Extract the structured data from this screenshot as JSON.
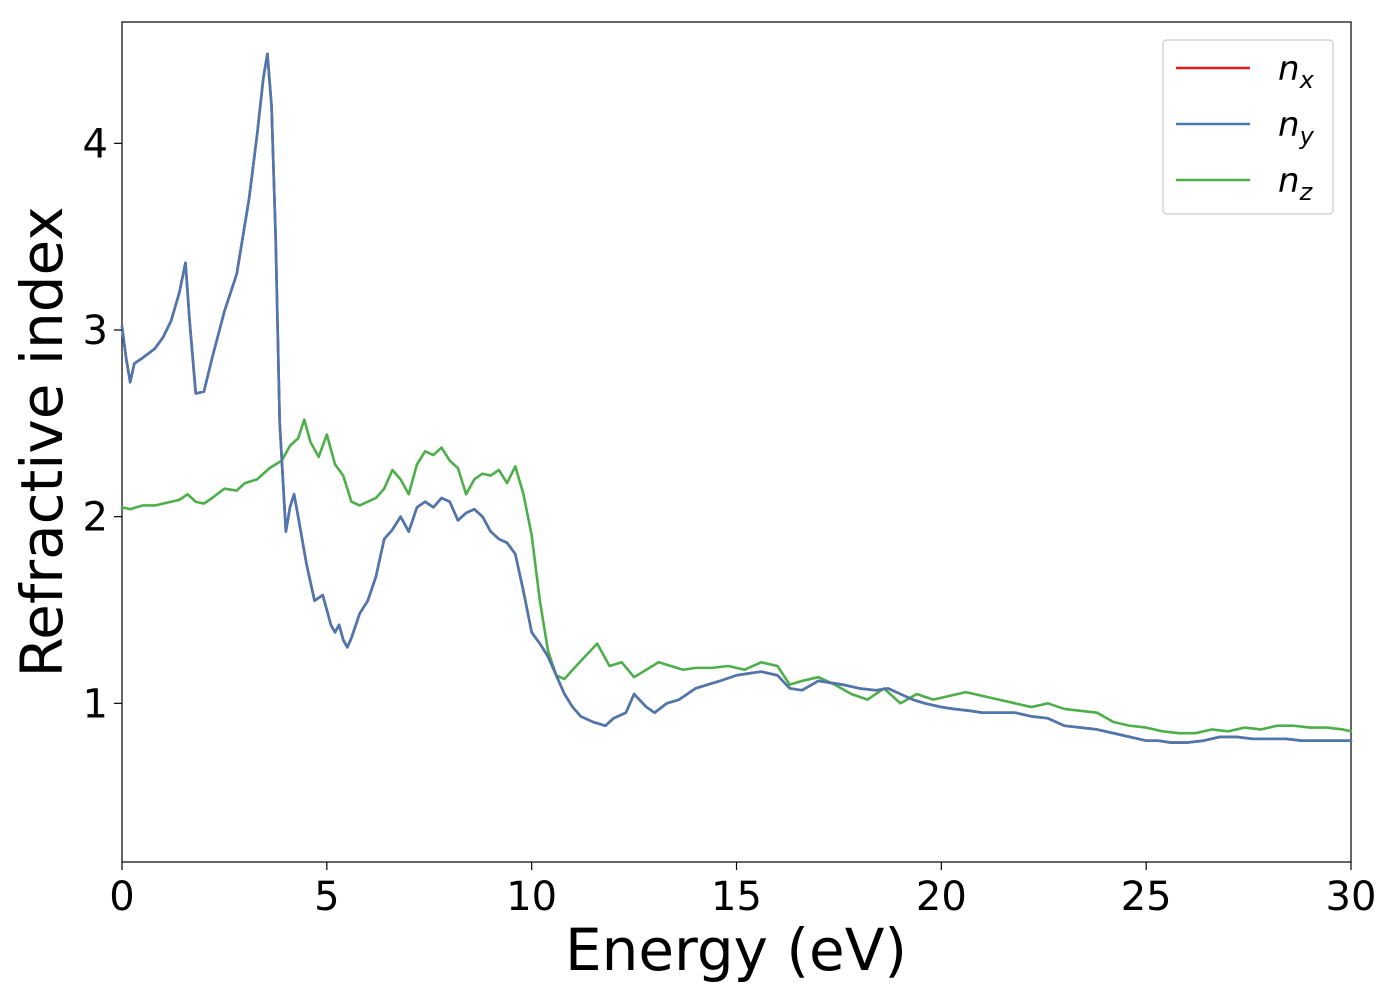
{
  "chart_data": {
    "type": "line",
    "xlabel": "Energy (eV)",
    "ylabel": "Refractive index",
    "xlim": [
      0,
      30
    ],
    "ylim": [
      0.15,
      4.65
    ],
    "xticks": [
      0,
      5,
      10,
      15,
      20,
      25,
      30
    ],
    "yticks": [
      1,
      2,
      3,
      4
    ],
    "grid": false,
    "legend_position": "top-right",
    "series": [
      {
        "name": "n",
        "subscript": "x",
        "color": "#e41a1c",
        "x": [
          0,
          0.1,
          0.2,
          0.3,
          0.5,
          0.8,
          1.0,
          1.2,
          1.4,
          1.55,
          1.65,
          1.8,
          2.0,
          2.2,
          2.5,
          2.8,
          3.1,
          3.3,
          3.45,
          3.55,
          3.65,
          3.75,
          3.85,
          4.0,
          4.1,
          4.2,
          4.3,
          4.5,
          4.7,
          4.9,
          5.0,
          5.1,
          5.2,
          5.3,
          5.4,
          5.5,
          5.6,
          5.8,
          6.0,
          6.2,
          6.4,
          6.6,
          6.8,
          7.0,
          7.2,
          7.4,
          7.6,
          7.8,
          8.0,
          8.2,
          8.4,
          8.6,
          8.8,
          9.0,
          9.2,
          9.4,
          9.6,
          9.8,
          10.0,
          10.2,
          10.4,
          10.6,
          10.8,
          11.0,
          11.2,
          11.5,
          11.8,
          12.0,
          12.3,
          12.5,
          12.8,
          13.0,
          13.3,
          13.6,
          14.0,
          14.3,
          14.6,
          15.0,
          15.3,
          15.6,
          16.0,
          16.3,
          16.6,
          17.0,
          17.3,
          17.6,
          18.0,
          18.4,
          18.7,
          19.0,
          19.3,
          19.6,
          20.0,
          20.3,
          20.7,
          21.0,
          21.4,
          21.8,
          22.2,
          22.6,
          23.0,
          23.4,
          23.8,
          24.2,
          24.6,
          25.0,
          25.3,
          25.6,
          26.0,
          26.4,
          26.8,
          27.2,
          27.6,
          28.0,
          28.4,
          28.8,
          29.2,
          29.6,
          30.0
        ],
        "values": [
          3.02,
          2.85,
          2.72,
          2.82,
          2.85,
          2.9,
          2.96,
          3.05,
          3.2,
          3.36,
          3.05,
          2.66,
          2.67,
          2.85,
          3.1,
          3.3,
          3.7,
          4.05,
          4.35,
          4.48,
          4.2,
          3.5,
          2.5,
          1.92,
          2.05,
          2.12,
          2.0,
          1.75,
          1.55,
          1.58,
          1.5,
          1.42,
          1.38,
          1.42,
          1.34,
          1.3,
          1.35,
          1.48,
          1.55,
          1.68,
          1.88,
          1.93,
          2.0,
          1.92,
          2.05,
          2.08,
          2.05,
          2.1,
          2.08,
          1.98,
          2.02,
          2.04,
          2.0,
          1.92,
          1.88,
          1.86,
          1.8,
          1.6,
          1.38,
          1.32,
          1.25,
          1.15,
          1.05,
          0.98,
          0.93,
          0.9,
          0.88,
          0.92,
          0.95,
          1.05,
          0.98,
          0.95,
          1.0,
          1.02,
          1.08,
          1.1,
          1.12,
          1.15,
          1.16,
          1.17,
          1.15,
          1.08,
          1.07,
          1.12,
          1.11,
          1.1,
          1.08,
          1.07,
          1.08,
          1.05,
          1.02,
          1.0,
          0.98,
          0.97,
          0.96,
          0.95,
          0.95,
          0.95,
          0.93,
          0.92,
          0.88,
          0.87,
          0.86,
          0.84,
          0.82,
          0.8,
          0.8,
          0.79,
          0.79,
          0.8,
          0.82,
          0.82,
          0.81,
          0.81,
          0.81,
          0.8,
          0.8,
          0.8,
          0.8
        ]
      },
      {
        "name": "n",
        "subscript": "y",
        "color": "#4a78b0",
        "x": [
          0,
          0.1,
          0.2,
          0.3,
          0.5,
          0.8,
          1.0,
          1.2,
          1.4,
          1.55,
          1.65,
          1.8,
          2.0,
          2.2,
          2.5,
          2.8,
          3.1,
          3.3,
          3.45,
          3.55,
          3.65,
          3.75,
          3.85,
          4.0,
          4.1,
          4.2,
          4.3,
          4.5,
          4.7,
          4.9,
          5.0,
          5.1,
          5.2,
          5.3,
          5.4,
          5.5,
          5.6,
          5.8,
          6.0,
          6.2,
          6.4,
          6.6,
          6.8,
          7.0,
          7.2,
          7.4,
          7.6,
          7.8,
          8.0,
          8.2,
          8.4,
          8.6,
          8.8,
          9.0,
          9.2,
          9.4,
          9.6,
          9.8,
          10.0,
          10.2,
          10.4,
          10.6,
          10.8,
          11.0,
          11.2,
          11.5,
          11.8,
          12.0,
          12.3,
          12.5,
          12.8,
          13.0,
          13.3,
          13.6,
          14.0,
          14.3,
          14.6,
          15.0,
          15.3,
          15.6,
          16.0,
          16.3,
          16.6,
          17.0,
          17.3,
          17.6,
          18.0,
          18.4,
          18.7,
          19.0,
          19.3,
          19.6,
          20.0,
          20.3,
          20.7,
          21.0,
          21.4,
          21.8,
          22.2,
          22.6,
          23.0,
          23.4,
          23.8,
          24.2,
          24.6,
          25.0,
          25.3,
          25.6,
          26.0,
          26.4,
          26.8,
          27.2,
          27.6,
          28.0,
          28.4,
          28.8,
          29.2,
          29.6,
          30.0
        ],
        "values": [
          3.02,
          2.85,
          2.72,
          2.82,
          2.85,
          2.9,
          2.96,
          3.05,
          3.2,
          3.36,
          3.05,
          2.66,
          2.67,
          2.85,
          3.1,
          3.3,
          3.7,
          4.05,
          4.35,
          4.48,
          4.2,
          3.5,
          2.5,
          1.92,
          2.05,
          2.12,
          2.0,
          1.75,
          1.55,
          1.58,
          1.5,
          1.42,
          1.38,
          1.42,
          1.34,
          1.3,
          1.35,
          1.48,
          1.55,
          1.68,
          1.88,
          1.93,
          2.0,
          1.92,
          2.05,
          2.08,
          2.05,
          2.1,
          2.08,
          1.98,
          2.02,
          2.04,
          2.0,
          1.92,
          1.88,
          1.86,
          1.8,
          1.6,
          1.38,
          1.32,
          1.25,
          1.15,
          1.05,
          0.98,
          0.93,
          0.9,
          0.88,
          0.92,
          0.95,
          1.05,
          0.98,
          0.95,
          1.0,
          1.02,
          1.08,
          1.1,
          1.12,
          1.15,
          1.16,
          1.17,
          1.15,
          1.08,
          1.07,
          1.12,
          1.11,
          1.1,
          1.08,
          1.07,
          1.08,
          1.05,
          1.02,
          1.0,
          0.98,
          0.97,
          0.96,
          0.95,
          0.95,
          0.95,
          0.93,
          0.92,
          0.88,
          0.87,
          0.86,
          0.84,
          0.82,
          0.8,
          0.8,
          0.79,
          0.79,
          0.8,
          0.82,
          0.82,
          0.81,
          0.81,
          0.81,
          0.8,
          0.8,
          0.8,
          0.8
        ]
      },
      {
        "name": "n",
        "subscript": "z",
        "color": "#4daf4a",
        "x": [
          0,
          0.2,
          0.5,
          0.8,
          1.0,
          1.2,
          1.4,
          1.6,
          1.8,
          2.0,
          2.2,
          2.5,
          2.8,
          3.0,
          3.3,
          3.6,
          3.9,
          4.1,
          4.3,
          4.45,
          4.6,
          4.8,
          5.0,
          5.2,
          5.4,
          5.6,
          5.8,
          6.0,
          6.2,
          6.4,
          6.6,
          6.8,
          7.0,
          7.2,
          7.4,
          7.6,
          7.8,
          8.0,
          8.2,
          8.4,
          8.6,
          8.8,
          9.0,
          9.2,
          9.4,
          9.6,
          9.8,
          10.0,
          10.2,
          10.4,
          10.6,
          10.8,
          11.0,
          11.3,
          11.6,
          11.9,
          12.2,
          12.5,
          12.8,
          13.1,
          13.4,
          13.7,
          14.0,
          14.4,
          14.8,
          15.2,
          15.6,
          16.0,
          16.3,
          16.6,
          17.0,
          17.4,
          17.8,
          18.2,
          18.6,
          19.0,
          19.4,
          19.8,
          20.2,
          20.6,
          21.0,
          21.4,
          21.8,
          22.2,
          22.6,
          23.0,
          23.4,
          23.8,
          24.2,
          24.6,
          25.0,
          25.4,
          25.8,
          26.2,
          26.6,
          27.0,
          27.4,
          27.8,
          28.2,
          28.6,
          29.0,
          29.4,
          29.8,
          30.0
        ],
        "values": [
          2.05,
          2.04,
          2.06,
          2.06,
          2.07,
          2.08,
          2.09,
          2.12,
          2.08,
          2.07,
          2.1,
          2.15,
          2.14,
          2.18,
          2.2,
          2.26,
          2.3,
          2.38,
          2.42,
          2.52,
          2.4,
          2.32,
          2.44,
          2.28,
          2.22,
          2.08,
          2.06,
          2.08,
          2.1,
          2.15,
          2.25,
          2.2,
          2.12,
          2.28,
          2.35,
          2.33,
          2.37,
          2.3,
          2.26,
          2.12,
          2.2,
          2.23,
          2.22,
          2.25,
          2.18,
          2.27,
          2.12,
          1.9,
          1.55,
          1.28,
          1.15,
          1.13,
          1.18,
          1.25,
          1.32,
          1.2,
          1.22,
          1.14,
          1.18,
          1.22,
          1.2,
          1.18,
          1.19,
          1.19,
          1.2,
          1.18,
          1.22,
          1.2,
          1.1,
          1.12,
          1.14,
          1.1,
          1.05,
          1.02,
          1.08,
          1.0,
          1.05,
          1.02,
          1.04,
          1.06,
          1.04,
          1.02,
          1.0,
          0.98,
          1.0,
          0.97,
          0.96,
          0.95,
          0.9,
          0.88,
          0.87,
          0.85,
          0.84,
          0.84,
          0.86,
          0.85,
          0.87,
          0.86,
          0.88,
          0.88,
          0.87,
          0.87,
          0.86,
          0.85
        ]
      }
    ]
  }
}
